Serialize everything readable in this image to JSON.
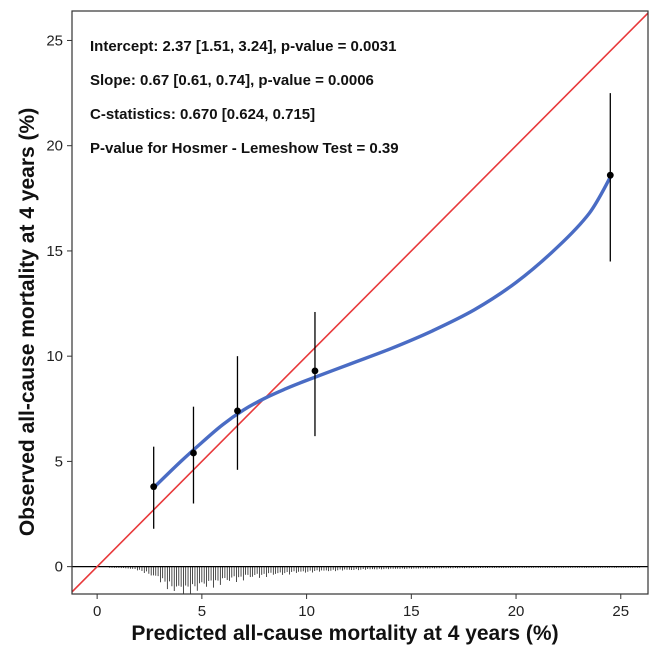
{
  "chart_data": {
    "type": "scatter",
    "xlabel": "Predicted all-cause mortality at 4 years (%)",
    "ylabel": "Observed all-cause mortality at 4 years (%)",
    "xlim": [
      -1.2,
      26.3
    ],
    "ylim": [
      -1.3,
      26.4
    ],
    "xticks": [
      "0",
      "5",
      "10",
      "15",
      "20",
      "25"
    ],
    "yticks": [
      "0",
      "5",
      "10",
      "15",
      "20",
      "25"
    ],
    "annotations": [
      "Intercept: 2.37 [1.51, 3.24], p-value = 0.0031",
      "Slope:  0.67 [0.61, 0.74], p-value = 0.0006",
      "C-statistics:  0.670 [0.624, 0.715]",
      "P-value for  Hosmer - Lemeshow Test = 0.39"
    ],
    "points": [
      {
        "x": 2.7,
        "y": 3.8,
        "lo": 1.8,
        "hi": 5.7
      },
      {
        "x": 4.6,
        "y": 5.4,
        "lo": 3.0,
        "hi": 7.6
      },
      {
        "x": 6.7,
        "y": 7.4,
        "lo": 4.6,
        "hi": 10.0
      },
      {
        "x": 10.4,
        "y": 9.3,
        "lo": 6.2,
        "hi": 12.1
      },
      {
        "x": 24.5,
        "y": 18.6,
        "lo": 14.5,
        "hi": 22.5
      }
    ],
    "smooth_curve": [
      [
        2.7,
        3.75
      ],
      [
        4,
        5.0
      ],
      [
        5,
        5.9
      ],
      [
        6,
        6.75
      ],
      [
        7,
        7.45
      ],
      [
        8,
        8.0
      ],
      [
        9,
        8.45
      ],
      [
        10,
        8.85
      ],
      [
        12,
        9.6
      ],
      [
        14,
        10.35
      ],
      [
        16,
        11.2
      ],
      [
        18,
        12.2
      ],
      [
        20,
        13.5
      ],
      [
        22,
        15.2
      ],
      [
        23.5,
        16.8
      ],
      [
        24.5,
        18.5
      ]
    ],
    "reference_line": {
      "slope": 1,
      "intercept": 0
    },
    "colors": {
      "reference_line": "#e8393b",
      "smooth_curve": "#4a6cc4",
      "points": "#000000",
      "histogram": "#000000"
    }
  }
}
